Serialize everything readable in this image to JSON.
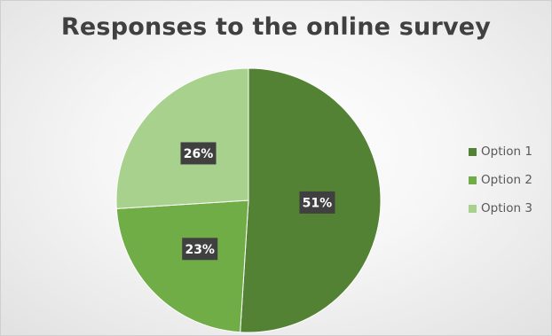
{
  "chart_data": {
    "type": "pie",
    "title": "Responses to the online survey",
    "categories": [
      "Option 1",
      "Option 2",
      "Option 3"
    ],
    "values": [
      51,
      23,
      26
    ],
    "data_labels": [
      "51%",
      "23%",
      "26%"
    ],
    "colors": [
      "#548235",
      "#70ad47",
      "#a9d18e"
    ],
    "legend_position": "right"
  }
}
